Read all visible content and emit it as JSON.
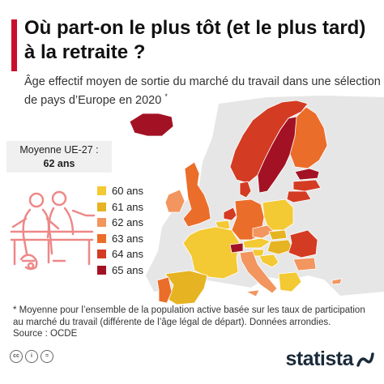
{
  "title": "Où part-on le plus tôt (et le plus tard) à la retraite ?",
  "subtitle": "Âge effectif moyen de sortie du marché du travail dans une sélection de pays d’Europe en 2020",
  "subtitle_marker": "*",
  "average": {
    "label": "Moyenne UE-27 :",
    "value": "62 ans"
  },
  "legend": [
    {
      "label": "60 ans",
      "color": "#f3c934"
    },
    {
      "label": "61 ans",
      "color": "#e6b422"
    },
    {
      "label": "62 ans",
      "color": "#f2955f"
    },
    {
      "label": "63 ans",
      "color": "#eb6d2a"
    },
    {
      "label": "64 ans",
      "color": "#d43b23"
    },
    {
      "label": "65 ans",
      "color": "#a31224"
    }
  ],
  "map_colors": {
    "background_land": "#e6e6e6",
    "sea": "#ffffff",
    "ireland": "#f2955f",
    "uk": "#eb6d2a",
    "iceland": "#a31224",
    "norway": "#d43b23",
    "sweden": "#a31224",
    "finland": "#eb6d2a",
    "estonia": "#a31224",
    "latvia": "#d43b23",
    "lithuania": "#d43b23",
    "denmark": "#d43b23",
    "netherlands": "#d43b23",
    "belgium": "#f3c934",
    "luxembourg": "#f3c934",
    "france": "#f3c934",
    "germany": "#eb6d2a",
    "poland": "#f3c934",
    "czechia": "#f2955f",
    "slovakia": "#e6b422",
    "austria": "#f3c934",
    "switzerland": "#a31224",
    "hungary": "#e6b422",
    "slovenia": "#f3c934",
    "croatia": "#f3c934",
    "romania": "#d43b23",
    "bulgaria": "#f2955f",
    "greece": "#f3c934",
    "italy": "#f2955f",
    "spain": "#e6b422",
    "portugal": "#eb6d2a",
    "cyprus": "#f2955f"
  },
  "footnote": "* Moyenne pour l’ensemble de la population active basée sur les taux de participation au marché du travail (différente de l’âge légal de départ). Données arrondies.",
  "source": "Source : OCDE",
  "license_icons": [
    "cc",
    "i",
    "="
  ],
  "logo": "statista"
}
